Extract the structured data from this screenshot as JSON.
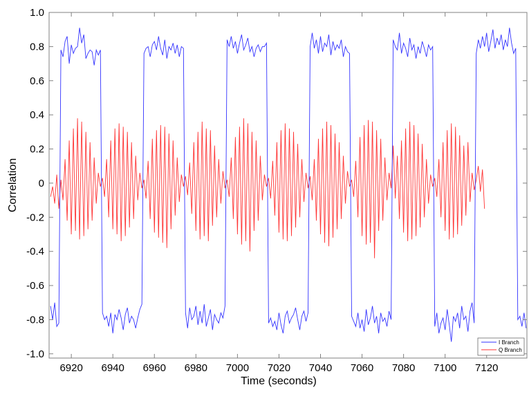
{
  "chart_data": {
    "type": "line",
    "title": "",
    "xlabel": "Time (seconds)",
    "ylabel": "Correlation",
    "xlim": [
      6909.3,
      7139.4
    ],
    "ylim": [
      -1.025,
      1.0
    ],
    "grid": false,
    "legend_position": "bottom-right",
    "xticks": [
      6920,
      6940,
      6960,
      6980,
      7000,
      7020,
      7040,
      7060,
      7080,
      7100,
      7120
    ],
    "xtick_labels": [
      "6920",
      "6940",
      "6960",
      "6980",
      "7000",
      "7020",
      "7040",
      "7060",
      "7080",
      "7100",
      "7120"
    ],
    "yticks": [
      1.0,
      0.8,
      0.6,
      0.4,
      0.2,
      0,
      -0.2,
      -0.4,
      -0.6,
      -0.8,
      -1.0
    ],
    "ytick_labels": [
      "1.0",
      "0.8",
      "0.6",
      "0.4",
      "0.2",
      "0",
      "-0.2",
      "-0.4",
      "-0.6",
      "-0.8",
      "-1.0"
    ],
    "x_start": 6910,
    "x_step": 1,
    "series": [
      {
        "name": "I Branch",
        "color": "#3333ff",
        "values": [
          -0.72,
          -0.8,
          -0.7,
          -0.84,
          -0.82,
          0.78,
          0.74,
          0.83,
          0.86,
          0.7,
          0.81,
          0.76,
          0.79,
          0.8,
          0.91,
          0.82,
          0.87,
          0.73,
          0.76,
          0.78,
          0.77,
          0.69,
          0.78,
          0.75,
          0.78,
          -0.76,
          -0.8,
          -0.78,
          -0.84,
          -0.76,
          -0.88,
          -0.77,
          -0.8,
          -0.74,
          -0.79,
          -0.86,
          -0.77,
          -0.73,
          -0.82,
          -0.78,
          -0.8,
          -0.85,
          -0.79,
          -0.74,
          -0.71,
          0.76,
          0.79,
          0.8,
          0.74,
          0.81,
          0.83,
          0.78,
          0.86,
          0.79,
          0.75,
          0.84,
          0.73,
          0.8,
          0.78,
          0.82,
          0.76,
          0.81,
          0.74,
          0.8,
          0.79,
          -0.76,
          -0.85,
          -0.73,
          -0.8,
          -0.78,
          -0.72,
          -0.83,
          -0.75,
          -0.82,
          -0.71,
          -0.84,
          -0.79,
          -0.74,
          -0.86,
          -0.77,
          -0.8,
          -0.82,
          -0.76,
          -0.79,
          -0.72,
          0.84,
          0.8,
          0.86,
          0.79,
          0.83,
          0.76,
          0.82,
          0.87,
          0.78,
          0.81,
          0.85,
          0.77,
          0.8,
          0.74,
          0.79,
          0.81,
          0.77,
          0.8,
          0.8,
          0.82,
          -0.82,
          -0.79,
          -0.84,
          -0.81,
          -0.86,
          -0.76,
          -0.83,
          -0.88,
          -0.78,
          -0.75,
          -0.82,
          -0.79,
          -0.77,
          -0.73,
          -0.8,
          -0.86,
          -0.78,
          -0.75,
          -0.81,
          -0.76,
          0.8,
          0.88,
          0.79,
          0.84,
          0.76,
          0.86,
          0.77,
          0.82,
          0.8,
          0.87,
          0.75,
          0.83,
          0.78,
          0.81,
          0.79,
          0.84,
          0.74,
          0.8,
          0.77,
          0.76,
          -0.78,
          -0.81,
          -0.84,
          -0.76,
          -0.85,
          -0.8,
          -0.87,
          -0.74,
          -0.83,
          -0.79,
          -0.72,
          -0.82,
          -0.78,
          -0.88,
          -0.76,
          -0.81,
          -0.79,
          -0.84,
          -0.75,
          -0.8,
          0.84,
          0.8,
          0.78,
          0.88,
          0.76,
          0.82,
          0.79,
          0.74,
          0.85,
          0.78,
          0.81,
          0.73,
          0.8,
          0.76,
          0.83,
          0.79,
          0.74,
          0.81,
          0.78,
          0.8,
          -0.84,
          -0.76,
          -0.88,
          -0.82,
          -0.79,
          -0.86,
          -0.74,
          -0.83,
          -0.93,
          -0.78,
          -0.81,
          -0.76,
          -0.85,
          -0.72,
          -0.8,
          -0.78,
          -0.87,
          -0.75,
          -0.7,
          -0.82,
          0.76,
          0.84,
          0.79,
          0.86,
          0.8,
          0.88,
          0.77,
          0.83,
          0.9,
          0.79,
          0.85,
          0.81,
          0.87,
          0.78,
          0.84,
          0.8,
          0.91,
          0.82,
          0.76,
          0.79,
          -0.8,
          -0.78,
          -0.84,
          -0.76,
          -0.85
        ]
      },
      {
        "name": "Q Branch",
        "color": "#ff3333",
        "values": [
          -0.08,
          -0.02,
          -0.12,
          0.05,
          -0.15,
          0.02,
          -0.1,
          0.14,
          -0.22,
          0.25,
          -0.3,
          0.32,
          -0.28,
          0.38,
          -0.33,
          0.36,
          -0.31,
          0.3,
          -0.27,
          0.24,
          -0.22,
          0.15,
          -0.12,
          0.06,
          -0.02,
          0.03,
          -0.08,
          0.14,
          -0.2,
          0.25,
          -0.27,
          0.32,
          -0.3,
          0.35,
          -0.34,
          0.33,
          -0.31,
          0.3,
          -0.26,
          0.24,
          -0.21,
          0.16,
          -0.1,
          0.06,
          -0.03,
          0.02,
          -0.09,
          0.13,
          -0.21,
          0.26,
          -0.29,
          0.31,
          -0.32,
          0.34,
          -0.35,
          0.33,
          -0.38,
          0.29,
          -0.27,
          0.25,
          -0.19,
          0.15,
          -0.11,
          0.05,
          -0.02,
          0.04,
          -0.07,
          0.12,
          -0.18,
          0.24,
          -0.28,
          0.3,
          -0.33,
          0.36,
          -0.31,
          0.32,
          -0.34,
          0.31,
          -0.25,
          0.22,
          -0.2,
          0.14,
          -0.12,
          0.07,
          -0.03,
          0.02,
          -0.08,
          0.15,
          -0.21,
          0.27,
          -0.3,
          0.33,
          -0.36,
          0.38,
          -0.34,
          0.35,
          -0.4,
          0.3,
          -0.28,
          0.25,
          -0.22,
          0.16,
          -0.1,
          0.05,
          -0.02,
          0.03,
          -0.09,
          0.13,
          -0.19,
          0.24,
          -0.29,
          0.31,
          -0.33,
          0.35,
          -0.34,
          0.32,
          -0.31,
          0.3,
          -0.26,
          0.23,
          -0.2,
          0.14,
          -0.11,
          0.06,
          -0.03,
          0.04,
          -0.1,
          0.14,
          -0.22,
          0.26,
          -0.3,
          0.32,
          -0.35,
          0.36,
          -0.37,
          0.34,
          -0.32,
          0.29,
          -0.27,
          0.24,
          -0.21,
          0.16,
          -0.12,
          0.07,
          -0.02,
          0.02,
          -0.08,
          0.13,
          -0.2,
          0.27,
          -0.31,
          0.34,
          -0.36,
          0.37,
          -0.35,
          0.36,
          -0.44,
          0.31,
          -0.28,
          0.26,
          -0.22,
          0.15,
          -0.1,
          0.06,
          -0.03,
          0.22,
          -0.09,
          0.16,
          -0.21,
          0.25,
          -0.29,
          0.32,
          -0.34,
          0.36,
          -0.33,
          0.34,
          -0.31,
          0.29,
          -0.26,
          0.23,
          -0.2,
          0.14,
          -0.12,
          0.05,
          -0.02,
          0.03,
          -0.08,
          0.14,
          -0.2,
          0.24,
          -0.28,
          0.31,
          -0.33,
          0.35,
          -0.32,
          0.33,
          -0.3,
          0.28,
          -0.25,
          0.22,
          -0.19,
          0.24,
          -0.11,
          0.06,
          -0.04,
          0.02,
          0.1,
          -0.05,
          0.08,
          -0.15
        ]
      }
    ]
  }
}
